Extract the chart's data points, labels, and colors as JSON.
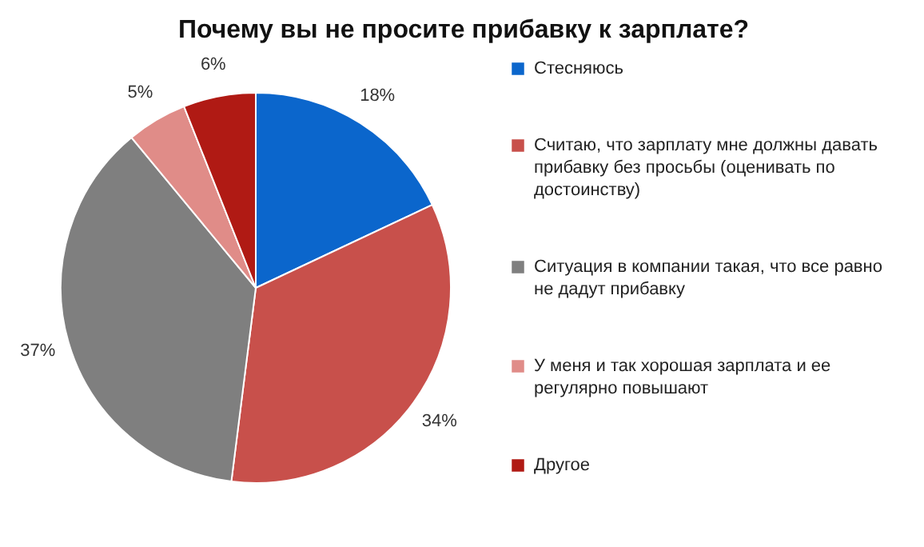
{
  "chart_data": {
    "type": "pie",
    "title": "Почему вы не просите прибавку к зарплате?",
    "categories": [
      "Стесняюсь",
      "Считаю, что зарплату мне должны давать прибавку без просьбы (оценивать по достоинству)",
      "Ситуация в компании такая, что все равно не дадут прибавку",
      "У меня и так хорошая зарплата и ее регулярно повышают",
      "Другое"
    ],
    "values": [
      18,
      34,
      37,
      5,
      6
    ],
    "value_labels": [
      "18%",
      "34%",
      "37%",
      "5%",
      "6%"
    ],
    "colors": [
      "#0b66cc",
      "#c8504b",
      "#7f7f7f",
      "#e08c88",
      "#b01a14"
    ],
    "legend": "right"
  }
}
